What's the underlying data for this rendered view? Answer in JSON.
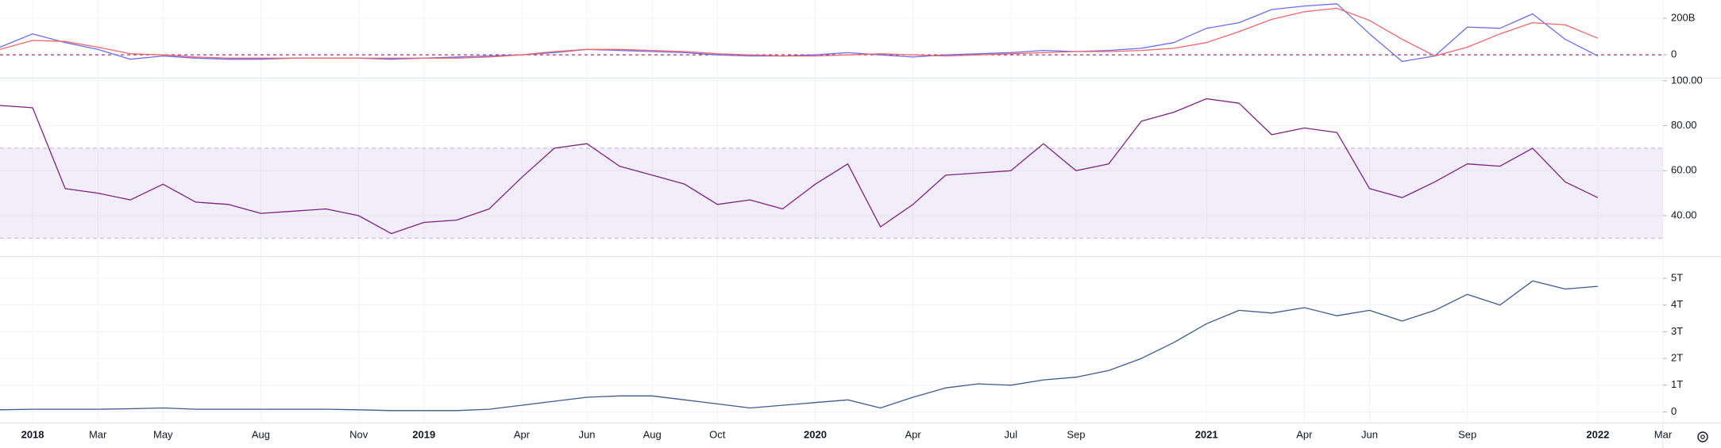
{
  "chart_data": [
    {
      "type": "line",
      "x": [
        "2017-12",
        "2018-01",
        "2018-02",
        "2018-03",
        "2018-04",
        "2018-05",
        "2018-06",
        "2018-07",
        "2018-08",
        "2018-09",
        "2018-10",
        "2018-11",
        "2018-12",
        "2019-01",
        "2019-02",
        "2019-03",
        "2019-04",
        "2019-05",
        "2019-06",
        "2019-07",
        "2019-08",
        "2019-09",
        "2019-10",
        "2019-11",
        "2019-12",
        "2020-01",
        "2020-02",
        "2020-03",
        "2020-04",
        "2020-05",
        "2020-06",
        "2020-07",
        "2020-08",
        "2020-09",
        "2020-10",
        "2020-11",
        "2020-12",
        "2021-01",
        "2021-02",
        "2021-03",
        "2021-04",
        "2021-05",
        "2021-06",
        "2021-07",
        "2021-08",
        "2021-09",
        "2021-10",
        "2021-11",
        "2021-12",
        "2022-01"
      ],
      "xlim": [
        "2017-12",
        "2022-03"
      ],
      "series": [
        {
          "color": "#6a6cf0",
          "values": [
            42,
            115,
            67,
            30,
            -24,
            -6,
            -18,
            -24,
            -24,
            -18,
            -18,
            -18,
            -24,
            -18,
            -12,
            -6,
            0,
            12,
            30,
            24,
            18,
            12,
            0,
            -6,
            -6,
            0,
            12,
            0,
            -12,
            0,
            6,
            12,
            24,
            18,
            24,
            36,
            67,
            145,
            176,
            248,
            267,
            279,
            115,
            -36,
            -6,
            152,
            145,
            224,
            85,
            -6
          ]
        },
        {
          "color": "#f0656b",
          "values": [
            30,
            79,
            73,
            42,
            6,
            0,
            -12,
            -18,
            -18,
            -18,
            -18,
            -18,
            -18,
            -18,
            -18,
            -12,
            0,
            18,
            30,
            30,
            24,
            18,
            6,
            0,
            -6,
            -6,
            0,
            6,
            0,
            -6,
            0,
            6,
            12,
            18,
            18,
            24,
            36,
            67,
            127,
            194,
            236,
            255,
            188,
            85,
            -6,
            42,
            115,
            176,
            164,
            91
          ]
        }
      ],
      "ylim": [
        -125,
        300
      ],
      "yticks": [
        0,
        {
          "value": 200,
          "label": "200B"
        }
      ],
      "hline": 0,
      "grid": true
    },
    {
      "type": "line",
      "x": [
        "2017-12",
        "2018-01",
        "2018-02",
        "2018-03",
        "2018-04",
        "2018-05",
        "2018-06",
        "2018-07",
        "2018-08",
        "2018-09",
        "2018-10",
        "2018-11",
        "2018-12",
        "2019-01",
        "2019-02",
        "2019-03",
        "2019-04",
        "2019-05",
        "2019-06",
        "2019-07",
        "2019-08",
        "2019-09",
        "2019-10",
        "2019-11",
        "2019-12",
        "2020-01",
        "2020-02",
        "2020-03",
        "2020-04",
        "2020-05",
        "2020-06",
        "2020-07",
        "2020-08",
        "2020-09",
        "2020-10",
        "2020-11",
        "2020-12",
        "2021-01",
        "2021-02",
        "2021-03",
        "2021-04",
        "2021-05",
        "2021-06",
        "2021-07",
        "2021-08",
        "2021-09",
        "2021-10",
        "2021-11",
        "2021-12",
        "2022-01"
      ],
      "xlim": [
        "2017-12",
        "2022-03"
      ],
      "series": [
        {
          "color": "#7e1f86",
          "values": [
            89,
            88,
            52,
            50,
            47,
            54,
            46,
            45,
            41,
            42,
            43,
            40,
            32,
            37,
            38,
            43,
            57,
            70,
            72,
            62,
            58,
            54,
            45,
            47,
            43,
            54,
            63,
            35,
            45,
            58,
            59,
            60,
            72,
            60,
            63,
            82,
            86,
            92,
            90,
            76,
            79,
            77,
            52,
            48,
            55,
            63,
            62,
            70,
            55,
            48
          ]
        }
      ],
      "ylim": [
        22,
        101
      ],
      "yticks": [
        {
          "value": 40,
          "label": "40.00"
        },
        {
          "value": 60,
          "label": "60.00"
        },
        {
          "value": 80,
          "label": "80.00"
        },
        {
          "value": 100,
          "label": "100.00"
        }
      ],
      "band": [
        30,
        70
      ],
      "band_color": "#7e57c2",
      "grid": true
    },
    {
      "type": "line",
      "x": [
        "2017-12",
        "2018-01",
        "2018-02",
        "2018-03",
        "2018-04",
        "2018-05",
        "2018-06",
        "2018-07",
        "2018-08",
        "2018-09",
        "2018-10",
        "2018-11",
        "2018-12",
        "2019-01",
        "2019-02",
        "2019-03",
        "2019-04",
        "2019-05",
        "2019-06",
        "2019-07",
        "2019-08",
        "2019-09",
        "2019-10",
        "2019-11",
        "2019-12",
        "2020-01",
        "2020-02",
        "2020-03",
        "2020-04",
        "2020-05",
        "2020-06",
        "2020-07",
        "2020-08",
        "2020-09",
        "2020-10",
        "2020-11",
        "2020-12",
        "2021-01",
        "2021-02",
        "2021-03",
        "2021-04",
        "2021-05",
        "2021-06",
        "2021-07",
        "2021-08",
        "2021-09",
        "2021-10",
        "2021-11",
        "2021-12",
        "2022-01"
      ],
      "xlim": [
        "2017-12",
        "2022-03"
      ],
      "xticks": [
        {
          "value": "2018-01",
          "label": "2018"
        },
        {
          "value": "2018-03",
          "label": "Mar"
        },
        {
          "value": "2018-05",
          "label": "May"
        },
        {
          "value": "2018-08",
          "label": "Aug"
        },
        {
          "value": "2018-11",
          "label": "Nov"
        },
        {
          "value": "2019-01",
          "label": "2019"
        },
        {
          "value": "2019-04",
          "label": "Apr"
        },
        {
          "value": "2019-06",
          "label": "Jun"
        },
        {
          "value": "2019-08",
          "label": "Aug"
        },
        {
          "value": "2019-10",
          "label": "Oct"
        },
        {
          "value": "2020-01",
          "label": "2020"
        },
        {
          "value": "2020-04",
          "label": "Apr"
        },
        {
          "value": "2020-07",
          "label": "Jul"
        },
        {
          "value": "2020-09",
          "label": "Sep"
        },
        {
          "value": "2021-01",
          "label": "2021"
        },
        {
          "value": "2021-04",
          "label": "Apr"
        },
        {
          "value": "2021-06",
          "label": "Jun"
        },
        {
          "value": "2021-09",
          "label": "Sep"
        },
        {
          "value": "2022-01",
          "label": "2022"
        },
        {
          "value": "2022-03",
          "label": "Mar"
        }
      ],
      "series": [
        {
          "color": "#3d5a8f",
          "values": [
            0.08,
            0.1,
            0.1,
            0.1,
            0.12,
            0.15,
            0.1,
            0.1,
            0.1,
            0.1,
            0.1,
            0.08,
            0.05,
            0.05,
            0.05,
            0.1,
            0.25,
            0.4,
            0.55,
            0.6,
            0.6,
            0.45,
            0.3,
            0.15,
            0.25,
            0.35,
            0.45,
            0.15,
            0.55,
            0.9,
            1.05,
            1.0,
            1.2,
            1.3,
            1.55,
            2.0,
            2.6,
            3.3,
            3.8,
            3.7,
            3.9,
            3.6,
            3.8,
            3.4,
            3.8,
            4.4,
            4.0,
            4.9,
            4.6,
            4.7
          ]
        }
      ],
      "ylim": [
        -0.4,
        5.8
      ],
      "yticks": [
        0,
        {
          "value": 1,
          "label": "1T"
        },
        {
          "value": 2,
          "label": "2T"
        },
        {
          "value": 3,
          "label": "3T"
        },
        {
          "value": 4,
          "label": "4T"
        },
        {
          "value": 5,
          "label": "5T"
        }
      ],
      "grid": true
    }
  ]
}
